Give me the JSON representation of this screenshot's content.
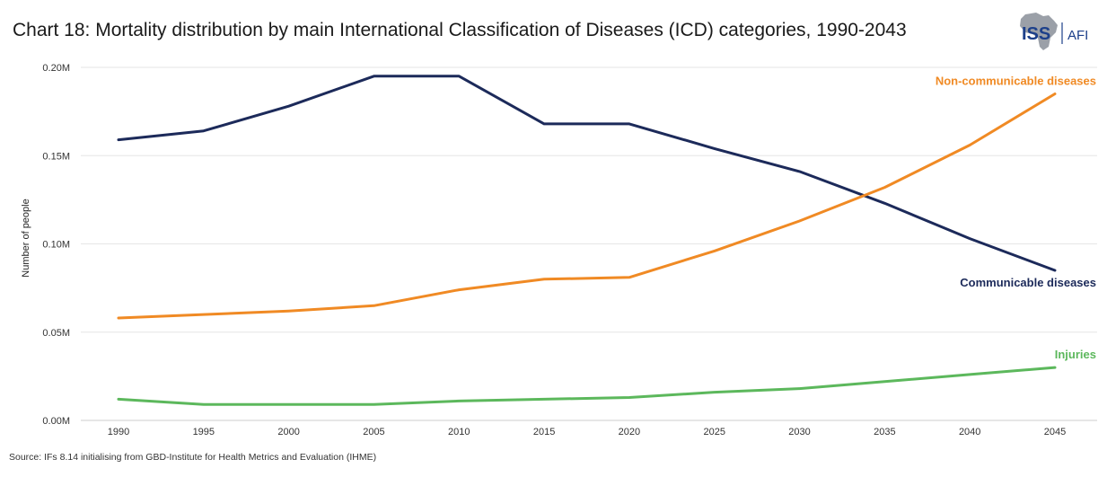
{
  "header": {
    "title": "Chart 18: Mortality distribution by main International Classification of Diseases (ICD) categories, 1990-2043"
  },
  "logo": {
    "primary": "ISS",
    "secondary": "AFI"
  },
  "footer": {
    "source": "Source: IFs 8.14 initialising from GBD-Institute for Health Metrics and Evaluation (IHME)"
  },
  "colors": {
    "communicable": "#1c2a5a",
    "noncommunicable": "#f08a24",
    "injuries": "#5cb85c",
    "grid": "#e6e6e6",
    "logo_blue": "#1c3f8a",
    "logo_gray": "#8a8f99"
  },
  "chart_data": {
    "type": "line",
    "title": "Chart 18: Mortality distribution by main International Classification of Diseases (ICD) categories, 1990-2043",
    "xlabel": "",
    "ylabel": "Number of people",
    "x": [
      1990,
      1995,
      2000,
      2005,
      2010,
      2015,
      2020,
      2025,
      2030,
      2035,
      2040,
      2045
    ],
    "y_ticks": [
      "0.00M",
      "0.05M",
      "0.10M",
      "0.15M",
      "0.20M"
    ],
    "y_tick_values": [
      0,
      0.05,
      0.1,
      0.15,
      0.2
    ],
    "ylim": [
      0,
      0.2
    ],
    "grid": true,
    "legend": "direct-labels",
    "series": [
      {
        "key": "communicable",
        "name": "Communicable diseases",
        "values": [
          0.159,
          0.164,
          0.178,
          0.195,
          0.195,
          0.168,
          0.168,
          0.154,
          0.141,
          0.123,
          0.103,
          0.085
        ]
      },
      {
        "key": "noncommunicable",
        "name": "Non-communicable diseases",
        "values": [
          0.058,
          0.06,
          0.062,
          0.065,
          0.074,
          0.08,
          0.081,
          0.096,
          0.113,
          0.132,
          0.156,
          0.185
        ]
      },
      {
        "key": "injuries",
        "name": "Injuries",
        "values": [
          0.012,
          0.009,
          0.009,
          0.009,
          0.011,
          0.012,
          0.013,
          0.016,
          0.018,
          0.022,
          0.026,
          0.03
        ]
      }
    ]
  }
}
